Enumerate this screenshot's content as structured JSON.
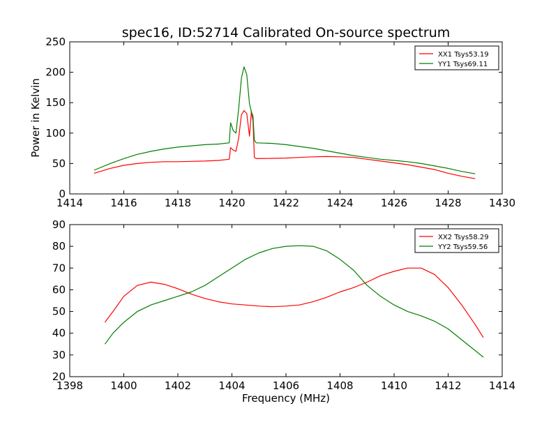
{
  "figure": {
    "title": "spec16, ID:52714 Calibrated On-source spectrum",
    "colors": {
      "xx": "#ff0000",
      "yy": "#007f00"
    }
  },
  "chart_data": [
    {
      "type": "line",
      "title": "spec16, ID:52714 Calibrated On-source spectrum",
      "xlabel": "",
      "ylabel": "Power in Kelvin",
      "xlim": [
        1414,
        1430
      ],
      "ylim": [
        0,
        250
      ],
      "xticks": [
        "1414",
        "1416",
        "1418",
        "1420",
        "1422",
        "1424",
        "1426",
        "1428",
        "1430"
      ],
      "yticks": [
        "0",
        "50",
        "100",
        "150",
        "200",
        "250"
      ],
      "grid": false,
      "legend": "top-right",
      "series": [
        {
          "name": "XX1 Tsys53.19",
          "color": "#ff0000",
          "x": [
            1414.9,
            1415.5,
            1416,
            1416.5,
            1417,
            1417.5,
            1418,
            1418.5,
            1419,
            1419.5,
            1419.9,
            1419.95,
            1420.05,
            1420.15,
            1420.25,
            1420.35,
            1420.45,
            1420.55,
            1420.65,
            1420.72,
            1420.78,
            1420.83,
            1420.9,
            1421.5,
            1422,
            1422.5,
            1423,
            1423.5,
            1424,
            1424.5,
            1425,
            1425.5,
            1426,
            1426.5,
            1427,
            1427.5,
            1428,
            1428.5,
            1429
          ],
          "y": [
            34,
            42,
            47,
            50,
            52,
            53,
            53,
            53.5,
            54,
            55,
            57,
            76,
            72,
            70,
            92,
            130,
            137,
            132,
            95,
            136,
            120,
            60,
            58,
            58.5,
            59,
            60,
            61,
            61.5,
            61,
            60,
            57,
            54,
            51,
            48,
            44,
            40,
            34,
            29,
            25
          ]
        },
        {
          "name": "YY1 Tsys69.11",
          "color": "#007f00",
          "x": [
            1414.9,
            1415.5,
            1416,
            1416.5,
            1417,
            1417.5,
            1418,
            1418.5,
            1419,
            1419.5,
            1419.9,
            1419.95,
            1420.05,
            1420.15,
            1420.25,
            1420.35,
            1420.45,
            1420.55,
            1420.65,
            1420.72,
            1420.78,
            1420.83,
            1420.9,
            1421.5,
            1422,
            1422.5,
            1423,
            1423.5,
            1424,
            1424.5,
            1425,
            1425.5,
            1426,
            1426.5,
            1427,
            1427.5,
            1428,
            1428.5,
            1429
          ],
          "y": [
            39,
            50,
            58,
            65,
            70,
            74,
            77,
            79,
            81,
            82,
            84,
            117,
            104,
            100,
            140,
            190,
            209,
            196,
            148,
            135,
            128,
            88,
            84,
            83,
            81,
            78,
            75,
            71,
            67,
            63,
            60,
            57,
            55,
            53,
            50,
            46,
            42,
            37,
            33
          ]
        }
      ]
    },
    {
      "type": "line",
      "title": "",
      "xlabel": "Frequency (MHz)",
      "ylabel": "",
      "xlim": [
        1398,
        1414
      ],
      "ylim": [
        20,
        90
      ],
      "xticks": [
        "1398",
        "1400",
        "1402",
        "1404",
        "1406",
        "1408",
        "1410",
        "1412",
        "1414"
      ],
      "yticks": [
        "20",
        "30",
        "40",
        "50",
        "60",
        "70",
        "80",
        "90"
      ],
      "grid": false,
      "legend": "top-right",
      "series": [
        {
          "name": "XX2 Tsys58.29",
          "color": "#ff0000",
          "x": [
            1399.3,
            1399.6,
            1400,
            1400.5,
            1401,
            1401.5,
            1402,
            1402.5,
            1403,
            1403.5,
            1404,
            1404.5,
            1405,
            1405.5,
            1406,
            1406.5,
            1407,
            1407.5,
            1408,
            1408.5,
            1409,
            1409.5,
            1410,
            1410.5,
            1411,
            1411.5,
            1412,
            1412.5,
            1413,
            1413.3
          ],
          "y": [
            45,
            50,
            57,
            62,
            63.5,
            62.5,
            60.5,
            58,
            56,
            54.5,
            53.5,
            53,
            52.5,
            52.2,
            52.5,
            53,
            54.5,
            56.5,
            59,
            61,
            63.5,
            66.5,
            68.5,
            70,
            70,
            67,
            61,
            53,
            44,
            38
          ]
        },
        {
          "name": "YY2 Tsys59.56",
          "color": "#007f00",
          "x": [
            1399.3,
            1399.6,
            1400,
            1400.5,
            1401,
            1401.5,
            1402,
            1402.5,
            1403,
            1403.5,
            1404,
            1404.5,
            1405,
            1405.5,
            1406,
            1406.5,
            1407,
            1407.5,
            1408,
            1408.5,
            1409,
            1409.5,
            1410,
            1410.5,
            1411,
            1411.5,
            1412,
            1412.5,
            1413,
            1413.3
          ],
          "y": [
            35,
            40,
            45,
            50,
            53,
            55,
            57,
            59,
            62,
            66,
            70,
            74,
            77,
            79,
            80,
            80.3,
            80,
            78,
            74,
            69,
            62,
            57,
            53,
            50,
            48,
            45.5,
            42,
            37,
            32,
            29
          ]
        }
      ]
    }
  ]
}
